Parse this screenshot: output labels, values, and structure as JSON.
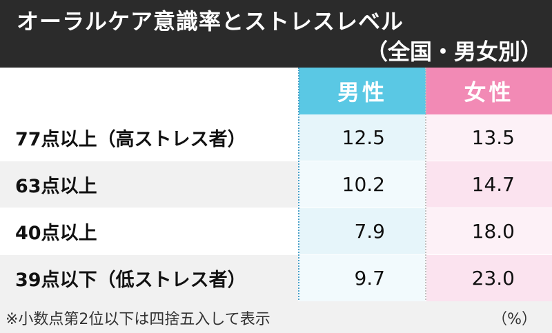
{
  "chart_data": {
    "type": "table",
    "title": "オーラルケア意識率とストレスレベル",
    "subtitle": "（全国・男女別）",
    "columns": [
      "男性",
      "女性"
    ],
    "rows": [
      {
        "label": "77点以上（高ストレス者）",
        "male": "12.5",
        "female": "13.5"
      },
      {
        "label": "63点以上",
        "male": "10.2",
        "female": "14.7"
      },
      {
        "label": "40点以上",
        "male": "7.9",
        "female": "18.0"
      },
      {
        "label": "39点以下（低ストレス者）",
        "male": "9.7",
        "female": "23.0"
      }
    ],
    "note": "※小数点第2位以下は四捨五入して表示",
    "unit": "（%）"
  },
  "colors": {
    "header_bg": "#2b2b2b",
    "male_accent": "#5ac8e4",
    "female_accent": "#f28ab5"
  }
}
